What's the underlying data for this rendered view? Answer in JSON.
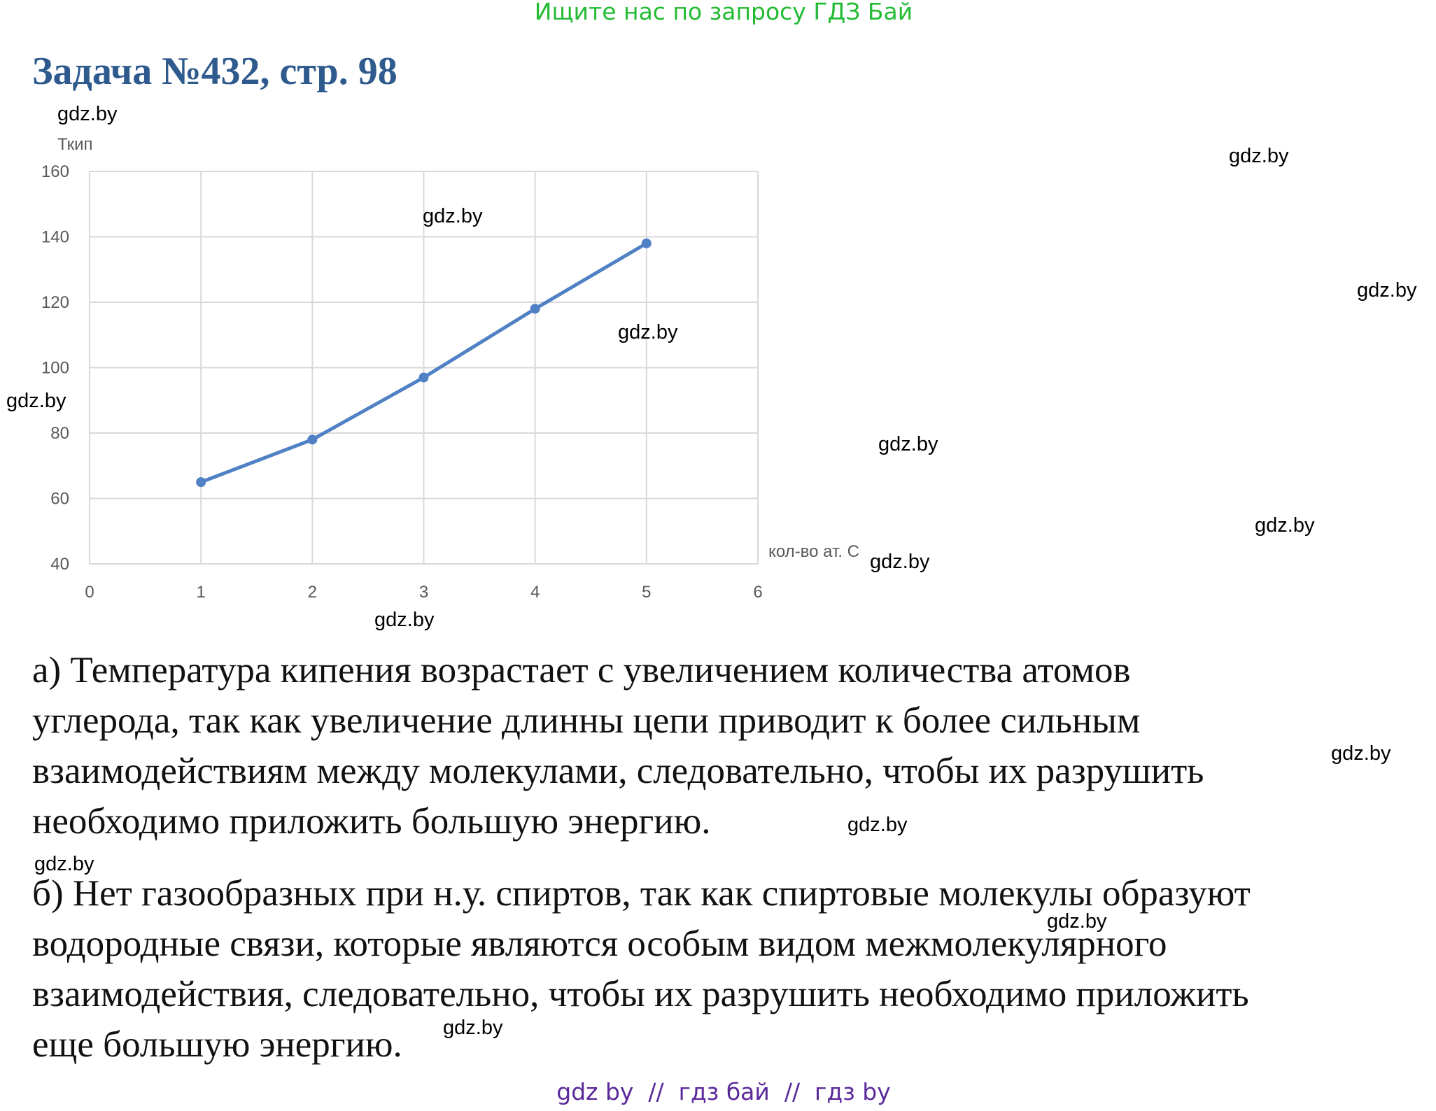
{
  "header": {
    "banner": "Ищите нас по запросу ГДЗ Бай",
    "title": "Задача №432, стр. 98"
  },
  "chart_data": {
    "type": "line",
    "ylabel": "Ткип",
    "xlabel": "кол-во ат. С",
    "x": [
      1,
      2,
      3,
      4,
      5
    ],
    "values": [
      65,
      78,
      97,
      118,
      138
    ],
    "color": "#4f81c4",
    "xlim": [
      0,
      6
    ],
    "xticks": [
      0,
      1,
      2,
      3,
      4,
      5,
      6
    ],
    "ylim": [
      40,
      160
    ],
    "yticks": [
      40,
      60,
      80,
      100,
      120,
      140,
      160
    ],
    "grid": true
  },
  "paragraphs": [
    [
      "а) Температура кипения возрастает с увеличением количества атомов",
      "углерода, так как увеличение длинны цепи приводит к более сильным",
      "взаимодействиям между молекулами, следовательно, чтобы их разрушить",
      "необходимо приложить большую энергию."
    ],
    [
      "б) Нет газообразных при н.у. спиртов, так как спиртовые молекулы образуют",
      "водородные связи, которые являются особым видом межмолекулярного",
      "взаимодействия, следовательно, чтобы их разрушить необходимо приложить",
      "еще большую энергию."
    ]
  ],
  "watermarks": [
    "gdz.by",
    "gdz.by",
    "gdz.by",
    "gdz.by",
    "gdz.by",
    "gdz.by",
    "gdz.by",
    "gdz.by",
    "gdz.by",
    "gdz.by",
    "gdz.by",
    "gdz.by",
    "gdz.by",
    "gdz.by",
    "gdz.by"
  ],
  "footer": "gdz by  //  гдз бай  //  гдз by"
}
